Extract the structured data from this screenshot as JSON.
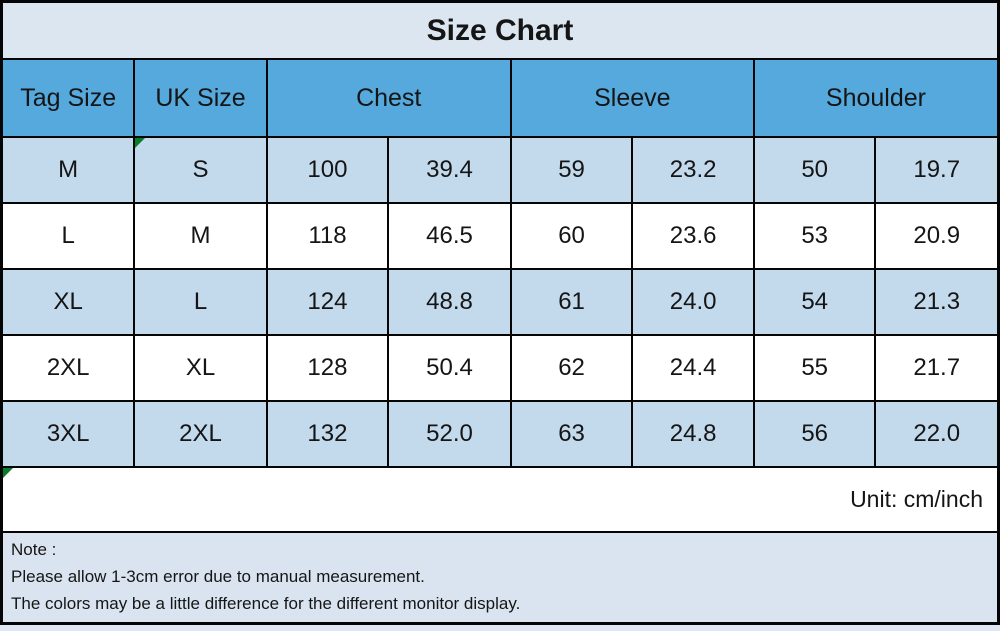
{
  "title": "Size Chart",
  "unit_label": "Unit: cm/inch",
  "header": {
    "tag_size": "Tag Size",
    "uk_size": "UK Size",
    "chest": "Chest",
    "sleeve": "Sleeve",
    "shoulder": "Shoulder"
  },
  "rows": [
    {
      "tag_size": "M",
      "uk_size": "S",
      "chest_cm": "100",
      "chest_inch": "39.4",
      "sleeve_cm": "59",
      "sleeve_inch": "23.2",
      "shoulder_cm": "50",
      "shoulder_inch": "19.7"
    },
    {
      "tag_size": "L",
      "uk_size": "M",
      "chest_cm": "118",
      "chest_inch": "46.5",
      "sleeve_cm": "60",
      "sleeve_inch": "23.6",
      "shoulder_cm": "53",
      "shoulder_inch": "20.9"
    },
    {
      "tag_size": "XL",
      "uk_size": "L",
      "chest_cm": "124",
      "chest_inch": "48.8",
      "sleeve_cm": "61",
      "sleeve_inch": "24.0",
      "shoulder_cm": "54",
      "shoulder_inch": "21.3"
    },
    {
      "tag_size": "2XL",
      "uk_size": "XL",
      "chest_cm": "128",
      "chest_inch": "50.4",
      "sleeve_cm": "62",
      "sleeve_inch": "24.4",
      "shoulder_cm": "55",
      "shoulder_inch": "21.7"
    },
    {
      "tag_size": "3XL",
      "uk_size": "2XL",
      "chest_cm": "132",
      "chest_inch": "52.0",
      "sleeve_cm": "63",
      "sleeve_inch": "24.8",
      "shoulder_cm": "56",
      "shoulder_inch": "22.0"
    }
  ],
  "note": {
    "heading": "Note :",
    "lines": [
      "Please allow 1-3cm error due to manual measurement.",
      "The colors may be a little difference for the different monitor display."
    ]
  },
  "icons": {
    "error_indicator": "excel-error-triangle"
  },
  "colors": {
    "title_bg": "#dce6f1",
    "header_bg": "#55a9dd",
    "row_alt_bg": "#c3d9ec",
    "row_bg": "#ffffff",
    "note_bg": "#d9e4f0",
    "border": "#000000",
    "error_indicator_green": "#0a7d2d",
    "text": "#151515"
  }
}
